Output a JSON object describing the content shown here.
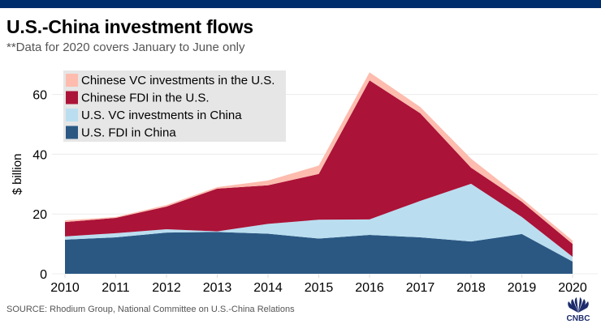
{
  "header": {
    "title": "U.S.-China investment flows",
    "subtitle": "**Data for 2020 covers January to June only"
  },
  "footer": {
    "source": "SOURCE: Rhodium Group, National Committee on U.S.-China Relations",
    "logo_text": "CNBC",
    "logo_icon": "cnbc-peacock-icon"
  },
  "colors": {
    "topbar": "#002d6c",
    "us_fdi": "#2b5883",
    "us_vc": "#badef0",
    "cn_fdi": "#ab1338",
    "cn_vc": "#fdbcae",
    "legend_bg": "#e6e6e6",
    "grid": "#ececec"
  },
  "chart_data": {
    "type": "area",
    "stacked": true,
    "title": "U.S.-China investment flows",
    "subtitle": "**Data for 2020 covers January to June only",
    "xlabel": "",
    "ylabel": "$ billion",
    "ylim": [
      0,
      70
    ],
    "yticks": [
      0,
      20,
      40,
      60
    ],
    "grid": true,
    "legend_position": "top-left",
    "categories": [
      "2010",
      "2011",
      "2012",
      "2013",
      "2014",
      "2015",
      "2016",
      "2017",
      "2018",
      "2019",
      "2020"
    ],
    "series": [
      {
        "name": "U.S. FDI in China",
        "color": "#2b5883",
        "values": [
          11.4,
          12.2,
          13.8,
          14.0,
          13.4,
          11.8,
          13.0,
          12.2,
          10.8,
          13.3,
          4.1
        ]
      },
      {
        "name": "U.S. VC investments in China",
        "color": "#badef0",
        "values": [
          1.1,
          1.4,
          1.1,
          0.2,
          3.3,
          6.3,
          5.2,
          12.2,
          19.3,
          5.7,
          1.6
        ]
      },
      {
        "name": "Chinese FDI in the U.S.",
        "color": "#ab1338",
        "values": [
          4.8,
          5.1,
          7.6,
          14.3,
          12.9,
          15.3,
          46.5,
          29.3,
          5.4,
          5.1,
          4.3
        ]
      },
      {
        "name": "Chinese VC investments in the U.S.",
        "color": "#fdbcae",
        "values": [
          0.6,
          0.3,
          0.5,
          0.5,
          1.6,
          2.8,
          2.7,
          2.1,
          3.0,
          1.1,
          1.1
        ]
      }
    ],
    "legend": [
      "Chinese VC investments in the U.S.",
      "Chinese FDI in the U.S.",
      "U.S. VC investments in China",
      "U.S. FDI in China"
    ]
  }
}
